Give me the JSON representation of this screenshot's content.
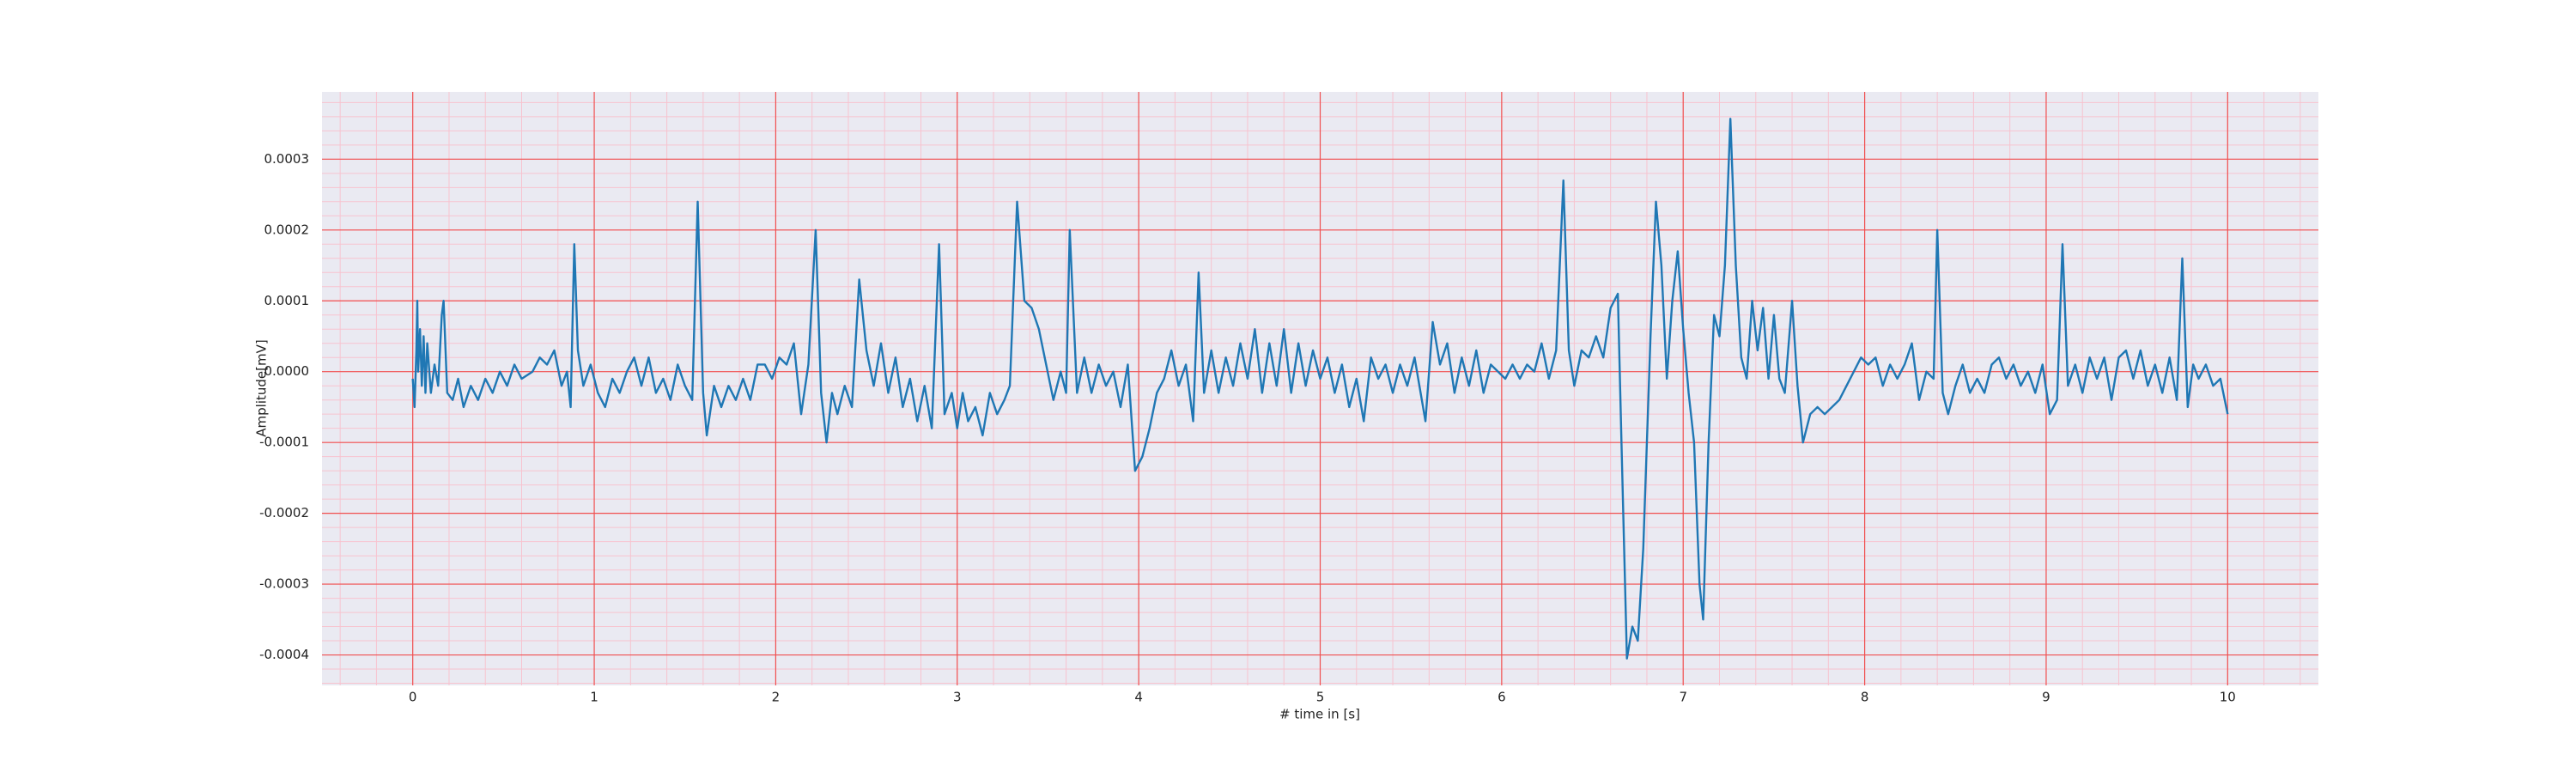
{
  "chart_data": {
    "type": "line",
    "xlabel": "# time in [s]",
    "ylabel": "Amplitude[mV]",
    "color": "#1f77b4",
    "background": "#eaeaf2",
    "grid": true,
    "grid_color": "#f05050",
    "minor_grid": true,
    "minor_grid_color": "#f7c3cf",
    "xlim": [
      -0.5,
      10.5
    ],
    "ylim": [
      -0.000443,
      0.000395
    ],
    "xticks": [
      0,
      1,
      2,
      3,
      4,
      5,
      6,
      7,
      8,
      9,
      10
    ],
    "yticks": [
      {
        "value": -0.0004,
        "label": "-0.0004"
      },
      {
        "value": -0.0003,
        "label": "-0.0003"
      },
      {
        "value": -0.0002,
        "label": "-0.0002"
      },
      {
        "value": -0.0001,
        "label": "-0.0001"
      },
      {
        "value": 0,
        "label": "0.0000"
      },
      {
        "value": 0.0001,
        "label": "0.0001"
      },
      {
        "value": 0.0002,
        "label": "0.0002"
      },
      {
        "value": 0.0003,
        "label": "0.0003"
      }
    ],
    "x": [
      0,
      0.01,
      0.02,
      0.025,
      0.03,
      0.04,
      0.05,
      0.06,
      0.07,
      0.08,
      0.1,
      0.12,
      0.14,
      0.16,
      0.17,
      0.19,
      0.22,
      0.25,
      0.28,
      0.32,
      0.36,
      0.4,
      0.44,
      0.48,
      0.52,
      0.56,
      0.6,
      0.66,
      0.7,
      0.74,
      0.78,
      0.82,
      0.85,
      0.87,
      0.89,
      0.91,
      0.94,
      0.98,
      1.02,
      1.06,
      1.1,
      1.14,
      1.18,
      1.22,
      1.26,
      1.3,
      1.34,
      1.38,
      1.42,
      1.46,
      1.5,
      1.54,
      1.57,
      1.6,
      1.62,
      1.66,
      1.7,
      1.74,
      1.78,
      1.82,
      1.86,
      1.9,
      1.94,
      1.98,
      2.02,
      2.06,
      2.1,
      2.14,
      2.18,
      2.22,
      2.25,
      2.28,
      2.31,
      2.34,
      2.38,
      2.42,
      2.46,
      2.5,
      2.54,
      2.58,
      2.62,
      2.66,
      2.7,
      2.74,
      2.78,
      2.82,
      2.86,
      2.9,
      2.93,
      2.97,
      3,
      3.03,
      3.06,
      3.1,
      3.14,
      3.18,
      3.22,
      3.26,
      3.29,
      3.33,
      3.37,
      3.41,
      3.45,
      3.49,
      3.53,
      3.57,
      3.6,
      3.62,
      3.66,
      3.7,
      3.74,
      3.78,
      3.82,
      3.86,
      3.9,
      3.94,
      3.98,
      4.02,
      4.06,
      4.1,
      4.14,
      4.18,
      4.22,
      4.26,
      4.3,
      4.33,
      4.36,
      4.4,
      4.44,
      4.48,
      4.52,
      4.56,
      4.6,
      4.64,
      4.68,
      4.72,
      4.76,
      4.8,
      4.84,
      4.88,
      4.92,
      4.96,
      5,
      5.04,
      5.08,
      5.12,
      5.16,
      5.2,
      5.24,
      5.28,
      5.32,
      5.36,
      5.4,
      5.44,
      5.48,
      5.52,
      5.56,
      5.58,
      5.62,
      5.66,
      5.7,
      5.74,
      5.78,
      5.82,
      5.86,
      5.9,
      5.94,
      5.98,
      6.02,
      6.06,
      6.1,
      6.14,
      6.18,
      6.22,
      6.26,
      6.3,
      6.34,
      6.37,
      6.4,
      6.44,
      6.48,
      6.52,
      6.56,
      6.6,
      6.64,
      6.66,
      6.69,
      6.72,
      6.75,
      6.78,
      6.82,
      6.85,
      6.88,
      6.91,
      6.94,
      6.97,
      7,
      7.03,
      7.06,
      7.09,
      7.11,
      7.14,
      7.17,
      7.2,
      7.23,
      7.26,
      7.29,
      7.32,
      7.35,
      7.38,
      7.41,
      7.44,
      7.47,
      7.5,
      7.53,
      7.56,
      7.6,
      7.63,
      7.66,
      7.7,
      7.74,
      7.78,
      7.82,
      7.86,
      7.9,
      7.94,
      7.98,
      8.02,
      8.06,
      8.1,
      8.14,
      8.18,
      8.22,
      8.26,
      8.3,
      8.34,
      8.38,
      8.4,
      8.43,
      8.46,
      8.5,
      8.54,
      8.58,
      8.62,
      8.66,
      8.7,
      8.74,
      8.78,
      8.82,
      8.86,
      8.9,
      8.94,
      8.98,
      9.02,
      9.06,
      9.09,
      9.12,
      9.16,
      9.2,
      9.24,
      9.28,
      9.32,
      9.36,
      9.4,
      9.44,
      9.48,
      9.52,
      9.56,
      9.6,
      9.64,
      9.68,
      9.72,
      9.75,
      9.78,
      9.81,
      9.84,
      9.88,
      9.92,
      9.96,
      10
    ],
    "values": [
      -1e-05,
      -5e-05,
      3e-05,
      0.0001,
      0,
      6e-05,
      -2e-05,
      5e-05,
      -3e-05,
      4e-05,
      -3e-05,
      1e-05,
      -2e-05,
      8e-05,
      0.0001,
      -3e-05,
      -4e-05,
      -1e-05,
      -5e-05,
      -2e-05,
      -4e-05,
      -1e-05,
      -3e-05,
      0,
      -2e-05,
      1e-05,
      -1e-05,
      0,
      2e-05,
      1e-05,
      3e-05,
      -2e-05,
      0,
      -5e-05,
      0.00018,
      3e-05,
      -2e-05,
      1e-05,
      -3e-05,
      -5e-05,
      -1e-05,
      -3e-05,
      0,
      2e-05,
      -2e-05,
      2e-05,
      -3e-05,
      -1e-05,
      -4e-05,
      1e-05,
      -2e-05,
      -4e-05,
      0.00024,
      -3e-05,
      -9e-05,
      -2e-05,
      -5e-05,
      -2e-05,
      -4e-05,
      -1e-05,
      -4e-05,
      1e-05,
      1e-05,
      -1e-05,
      2e-05,
      1e-05,
      4e-05,
      -6e-05,
      1e-05,
      0.0002,
      -3e-05,
      -0.0001,
      -3e-05,
      -6e-05,
      -2e-05,
      -5e-05,
      0.00013,
      3e-05,
      -2e-05,
      4e-05,
      -3e-05,
      2e-05,
      -5e-05,
      -1e-05,
      -7e-05,
      -2e-05,
      -8e-05,
      0.00018,
      -6e-05,
      -3e-05,
      -8e-05,
      -3e-05,
      -7e-05,
      -5e-05,
      -9e-05,
      -3e-05,
      -6e-05,
      -4e-05,
      -2e-05,
      0.00024,
      0.0001,
      9e-05,
      6e-05,
      1e-05,
      -4e-05,
      0,
      -3e-05,
      0.0002,
      -3e-05,
      2e-05,
      -3e-05,
      1e-05,
      -2e-05,
      0,
      -5e-05,
      1e-05,
      -0.00014,
      -0.00012,
      -8e-05,
      -3e-05,
      -1e-05,
      3e-05,
      -2e-05,
      1e-05,
      -7e-05,
      0.00014,
      -3e-05,
      3e-05,
      -3e-05,
      2e-05,
      -2e-05,
      4e-05,
      -1e-05,
      6e-05,
      -3e-05,
      4e-05,
      -2e-05,
      6e-05,
      -3e-05,
      4e-05,
      -2e-05,
      3e-05,
      -1e-05,
      2e-05,
      -3e-05,
      1e-05,
      -5e-05,
      -1e-05,
      -7e-05,
      2e-05,
      -1e-05,
      1e-05,
      -3e-05,
      1e-05,
      -2e-05,
      2e-05,
      -4e-05,
      -7e-05,
      7e-05,
      1e-05,
      4e-05,
      -3e-05,
      2e-05,
      -2e-05,
      3e-05,
      -3e-05,
      1e-05,
      0,
      -1e-05,
      1e-05,
      -1e-05,
      1e-05,
      0,
      4e-05,
      -1e-05,
      3e-05,
      0.00027,
      3e-05,
      -2e-05,
      3e-05,
      2e-05,
      5e-05,
      2e-05,
      9e-05,
      0.00011,
      -0.0001,
      -0.000405,
      -0.00036,
      -0.00038,
      -0.00025,
      5e-05,
      0.00024,
      0.00015,
      -1e-05,
      0.0001,
      0.00017,
      6e-05,
      -3e-05,
      -0.0001,
      -0.0003,
      -0.00035,
      -0.0001,
      8e-05,
      5e-05,
      0.00015,
      0.000357,
      0.00015,
      2e-05,
      -1e-05,
      0.0001,
      3e-05,
      9e-05,
      -1e-05,
      8e-05,
      -1e-05,
      -3e-05,
      0.0001,
      -2e-05,
      -0.0001,
      -6e-05,
      -5e-05,
      -6e-05,
      -5e-05,
      -4e-05,
      -2e-05,
      0,
      2e-05,
      1e-05,
      2e-05,
      -2e-05,
      1e-05,
      -1e-05,
      1e-05,
      4e-05,
      -4e-05,
      0,
      -1e-05,
      0.0002,
      -3e-05,
      -6e-05,
      -2e-05,
      1e-05,
      -3e-05,
      -1e-05,
      -3e-05,
      1e-05,
      2e-05,
      -1e-05,
      1e-05,
      -2e-05,
      0,
      -3e-05,
      1e-05,
      -6e-05,
      -4e-05,
      0.00018,
      -2e-05,
      1e-05,
      -3e-05,
      2e-05,
      -1e-05,
      2e-05,
      -4e-05,
      2e-05,
      3e-05,
      -1e-05,
      3e-05,
      -2e-05,
      1e-05,
      -3e-05,
      2e-05,
      -4e-05,
      0.00016,
      -5e-05,
      1e-05,
      -1e-05,
      1e-05,
      -2e-05,
      -1e-05,
      -6e-05
    ]
  }
}
